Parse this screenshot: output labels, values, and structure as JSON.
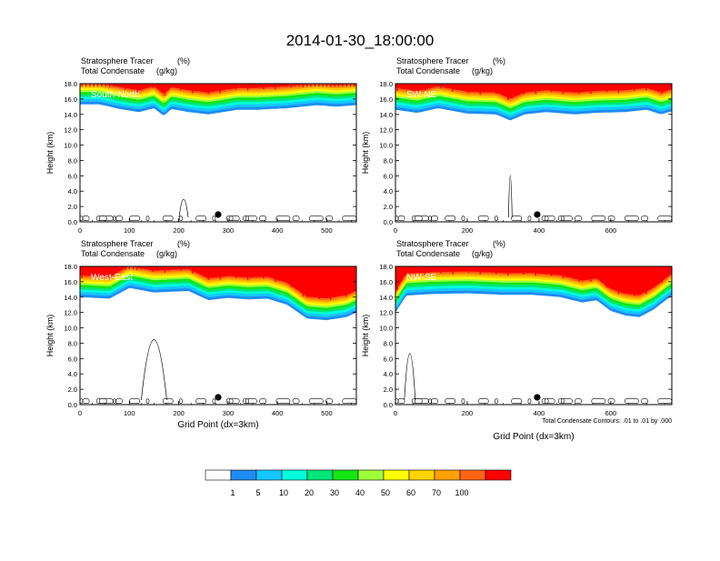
{
  "figure": {
    "title": "2014-01-30_18:00:00",
    "contour_note": "Total Condensate Contours: .01 to .01 by .000"
  },
  "colorbar": {
    "colors": [
      "#ffffff",
      "#1e8cf0",
      "#14c8ff",
      "#00ffdc",
      "#00e678",
      "#14e614",
      "#a0ff3c",
      "#ffff00",
      "#ffd200",
      "#ffa000",
      "#ff6414",
      "#ff0000"
    ],
    "labels": [
      "1",
      "5",
      "10",
      "20",
      "30",
      "40",
      "50",
      "60",
      "70",
      "100"
    ]
  },
  "chart_data": [
    {
      "type": "heatmap",
      "panel_label": "South-North",
      "title_left": "Stratosphere Tracer",
      "title_unit": "(%)",
      "subtitle_left": "Total Condensate",
      "subtitle_unit": "(g/kg)",
      "ylabel": "Height (km)",
      "xlabel": "",
      "xlim": [
        0,
        560
      ],
      "ylim": [
        0,
        18
      ],
      "x_ticks": [
        "0",
        "100",
        "200",
        "300",
        "400",
        "500"
      ],
      "y_ticks": [
        "0.0",
        "2.0",
        "4.0",
        "6.0",
        "8.0",
        "10.0",
        "12.0",
        "14.0",
        "16.0",
        "18.0"
      ],
      "tracer_base_km": [
        [
          0,
          15.3
        ],
        [
          40,
          15.3
        ],
        [
          80,
          14.7
        ],
        [
          120,
          14.3
        ],
        [
          150,
          14.8
        ],
        [
          170,
          13.8
        ],
        [
          185,
          14.7
        ],
        [
          220,
          14.3
        ],
        [
          260,
          14.0
        ],
        [
          320,
          14.6
        ],
        [
          360,
          14.6
        ],
        [
          420,
          14.8
        ],
        [
          480,
          15.2
        ],
        [
          520,
          15.0
        ],
        [
          560,
          15.2
        ]
      ],
      "marker_x": 280
    },
    {
      "type": "heatmap",
      "panel_label": "SW-NE",
      "title_left": "Stratosphere Tracer",
      "title_unit": "(%)",
      "subtitle_left": "Total Condensate",
      "subtitle_unit": "(g/kg)",
      "ylabel": "Height (km)",
      "xlabel": "",
      "xlim": [
        0,
        770
      ],
      "ylim": [
        0,
        18
      ],
      "x_ticks": [
        "0",
        "200",
        "400",
        "600"
      ],
      "y_ticks": [
        "0.0",
        "2.0",
        "4.0",
        "6.0",
        "8.0",
        "10.0",
        "12.0",
        "14.0",
        "16.0",
        "18.0"
      ],
      "tracer_base_km": [
        [
          0,
          14.6
        ],
        [
          60,
          14.2
        ],
        [
          120,
          14.8
        ],
        [
          200,
          14.1
        ],
        [
          280,
          14.0
        ],
        [
          320,
          13.2
        ],
        [
          360,
          14.0
        ],
        [
          420,
          14.3
        ],
        [
          500,
          14.0
        ],
        [
          560,
          14.2
        ],
        [
          640,
          14.3
        ],
        [
          700,
          14.6
        ],
        [
          740,
          14.0
        ],
        [
          770,
          14.4
        ]
      ],
      "marker_x": 395
    },
    {
      "type": "heatmap",
      "panel_label": "West-East",
      "title_left": "Stratosphere Tracer",
      "title_unit": "(%)",
      "subtitle_left": "Total Condensate",
      "subtitle_unit": "(g/kg)",
      "ylabel": "Height (km)",
      "xlabel": "Grid Point (dx=3km)",
      "xlim": [
        0,
        560
      ],
      "ylim": [
        0,
        18
      ],
      "x_ticks": [
        "0",
        "100",
        "200",
        "300",
        "400",
        "500"
      ],
      "y_ticks": [
        "0.0",
        "2.0",
        "4.0",
        "6.0",
        "8.0",
        "10.0",
        "12.0",
        "14.0",
        "16.0",
        "18.0"
      ],
      "tracer_base_km": [
        [
          0,
          14.0
        ],
        [
          60,
          13.8
        ],
        [
          100,
          15.2
        ],
        [
          150,
          14.6
        ],
        [
          220,
          14.8
        ],
        [
          260,
          13.6
        ],
        [
          300,
          13.9
        ],
        [
          340,
          13.7
        ],
        [
          380,
          13.8
        ],
        [
          420,
          13.0
        ],
        [
          460,
          11.2
        ],
        [
          500,
          11.0
        ],
        [
          540,
          11.4
        ],
        [
          560,
          12.0
        ]
      ],
      "marker_x": 280
    },
    {
      "type": "heatmap",
      "panel_label": "NW-SE",
      "title_left": "Stratosphere Tracer",
      "title_unit": "(%)",
      "subtitle_left": "Total Condensate",
      "subtitle_unit": "(g/kg)",
      "ylabel": "Height (km)",
      "xlabel": "Grid Point (dx=3km)",
      "xlim": [
        0,
        770
      ],
      "ylim": [
        0,
        18
      ],
      "x_ticks": [
        "0",
        "200",
        "400",
        "600"
      ],
      "y_ticks": [
        "0.0",
        "2.0",
        "4.0",
        "6.0",
        "8.0",
        "10.0",
        "12.0",
        "14.0",
        "16.0",
        "18.0"
      ],
      "tracer_base_km": [
        [
          0,
          12.0
        ],
        [
          30,
          14.2
        ],
        [
          100,
          14.4
        ],
        [
          200,
          14.5
        ],
        [
          300,
          14.3
        ],
        [
          380,
          14.3
        ],
        [
          460,
          14.0
        ],
        [
          520,
          13.3
        ],
        [
          560,
          13.6
        ],
        [
          600,
          12.2
        ],
        [
          640,
          11.6
        ],
        [
          680,
          11.4
        ],
        [
          720,
          12.4
        ],
        [
          770,
          14.2
        ]
      ],
      "marker_x": 395
    }
  ]
}
